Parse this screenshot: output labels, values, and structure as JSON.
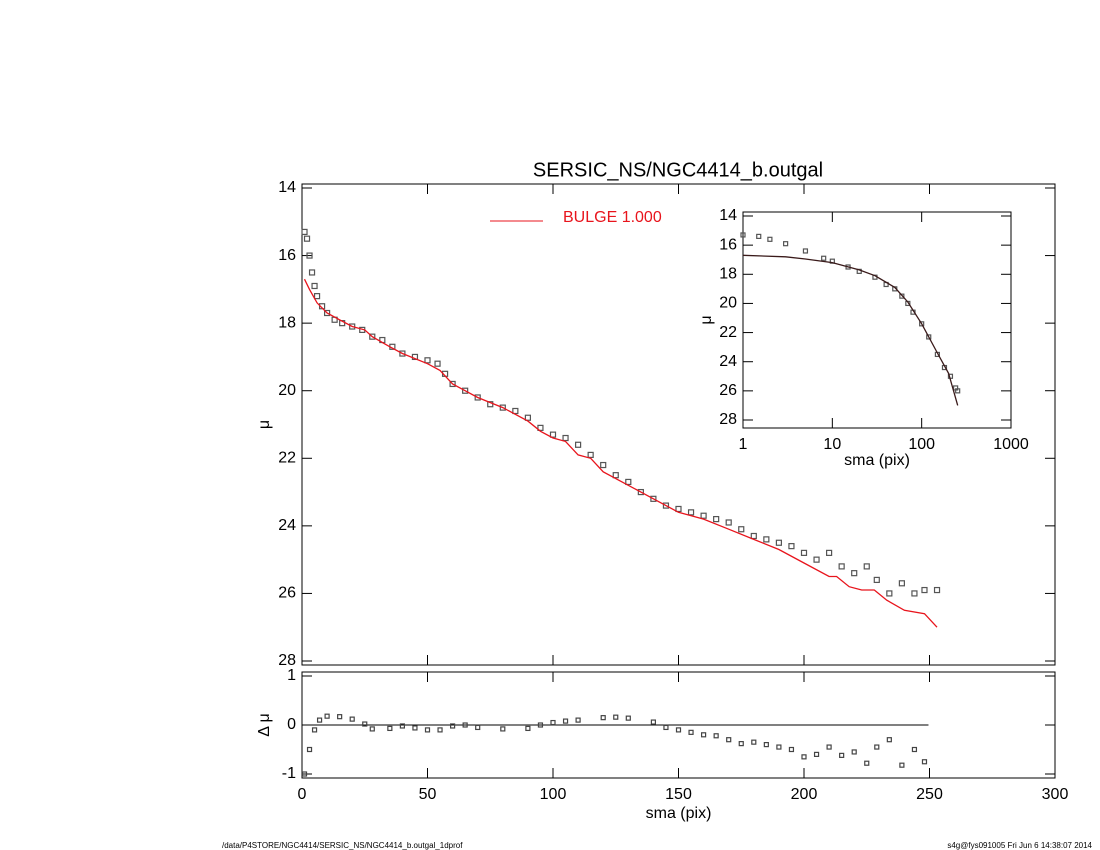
{
  "chart_data": [
    {
      "type": "line",
      "title": "SERSIC_NS/NGC4414_b.outgal",
      "y_label": "μ",
      "xlim": [
        0,
        300
      ],
      "ylim": [
        28,
        14
      ],
      "yticks": [
        14,
        16,
        18,
        20,
        22,
        24,
        26,
        28
      ],
      "legend": "top",
      "series": [
        {
          "color": "#555555",
          "marker": "square",
          "x": [
            1,
            2,
            3,
            4,
            5,
            6,
            8,
            10,
            13,
            16,
            20,
            24,
            28,
            32,
            36,
            40,
            45,
            50,
            54,
            57,
            60,
            65,
            70,
            75,
            80,
            85,
            90,
            95,
            100,
            105,
            110,
            115,
            120,
            125,
            130,
            135,
            140,
            145,
            150,
            155,
            160,
            165,
            170,
            175,
            180,
            185,
            190,
            195,
            200,
            205,
            210,
            215,
            220,
            225,
            229,
            234,
            239,
            244,
            248,
            253
          ],
          "values": [
            15.3,
            15.5,
            16.0,
            16.5,
            16.9,
            17.2,
            17.5,
            17.7,
            17.9,
            18.0,
            18.1,
            18.2,
            18.4,
            18.5,
            18.7,
            18.9,
            19.0,
            19.1,
            19.2,
            19.5,
            19.8,
            20.0,
            20.2,
            20.4,
            20.5,
            20.6,
            20.8,
            21.1,
            21.3,
            21.4,
            21.6,
            21.9,
            22.2,
            22.5,
            22.7,
            23.0,
            23.2,
            23.4,
            23.5,
            23.6,
            23.7,
            23.8,
            23.9,
            24.1,
            24.3,
            24.4,
            24.5,
            24.6,
            24.8,
            25.0,
            24.8,
            25.2,
            25.4,
            25.2,
            25.6,
            26.0,
            25.7,
            26.0,
            25.9,
            25.9
          ]
        },
        {
          "name": "BULGE  1.000",
          "color": "#e8141c",
          "marker": "none",
          "x": [
            1,
            3,
            6,
            10,
            15,
            20,
            25,
            28,
            35,
            40,
            50,
            55,
            60,
            65,
            70,
            80,
            90,
            95,
            100,
            105,
            110,
            115,
            120,
            130,
            140,
            150,
            160,
            170,
            180,
            190,
            200,
            210,
            213,
            218,
            223,
            228,
            233,
            240,
            248,
            253
          ],
          "values": [
            16.7,
            17.0,
            17.4,
            17.7,
            17.9,
            18.1,
            18.2,
            18.4,
            18.7,
            18.9,
            19.2,
            19.4,
            19.8,
            20.0,
            20.2,
            20.5,
            20.9,
            21.2,
            21.4,
            21.5,
            21.9,
            22.0,
            22.4,
            22.8,
            23.2,
            23.6,
            23.8,
            24.1,
            24.4,
            24.7,
            25.1,
            25.5,
            25.5,
            25.8,
            25.9,
            25.9,
            26.2,
            26.5,
            26.6,
            27.0
          ]
        }
      ]
    },
    {
      "type": "scatter",
      "y_label": "Δ μ",
      "x_label": "sma (pix)",
      "xlim": [
        0,
        300
      ],
      "xticks": [
        0,
        50,
        100,
        150,
        200,
        250,
        300
      ],
      "ylim": [
        -1,
        1
      ],
      "yticks": [
        -1,
        0,
        1
      ],
      "reference_line": 0,
      "series": [
        {
          "color": "#444444",
          "marker": "square",
          "x": [
            1,
            3,
            5,
            7,
            10,
            15,
            20,
            25,
            28,
            35,
            40,
            45,
            50,
            55,
            60,
            65,
            70,
            80,
            90,
            95,
            100,
            105,
            110,
            120,
            125,
            130,
            140,
            145,
            150,
            155,
            160,
            165,
            170,
            175,
            180,
            185,
            190,
            195,
            200,
            205,
            210,
            215,
            220,
            225,
            229,
            234,
            239,
            244,
            248
          ],
          "values": [
            -1,
            -0.5,
            -0.1,
            0.1,
            0.18,
            0.17,
            0.12,
            0.02,
            -0.08,
            -0.07,
            -0.02,
            -0.06,
            -0.1,
            -0.1,
            -0.02,
            0,
            -0.05,
            -0.08,
            -0.07,
            0,
            0.05,
            0.08,
            0.1,
            0.15,
            0.16,
            0.14,
            0.06,
            -0.05,
            -0.1,
            -0.15,
            -0.2,
            -0.22,
            -0.3,
            -0.38,
            -0.35,
            -0.4,
            -0.45,
            -0.5,
            -0.65,
            -0.6,
            -0.45,
            -0.62,
            -0.55,
            -0.78,
            -0.45,
            -0.3,
            -0.82,
            -0.5,
            -0.75
          ]
        }
      ]
    },
    {
      "type": "line",
      "y_label": "μ",
      "x_label": "sma (pix)",
      "xlog": true,
      "xlim": [
        1,
        1000
      ],
      "xticks": [
        1,
        10,
        100,
        1000
      ],
      "ylim": [
        28,
        14
      ],
      "yticks": [
        14,
        16,
        18,
        20,
        22,
        24,
        26,
        28
      ],
      "series": [
        {
          "color": "#555555",
          "marker": "square",
          "x": [
            1,
            1.5,
            2,
            3,
            5,
            8,
            10,
            15,
            20,
            30,
            40,
            50,
            60,
            70,
            80,
            100,
            120,
            150,
            180,
            210,
            240,
            253
          ],
          "values": [
            15.3,
            15.4,
            15.6,
            15.9,
            16.4,
            16.9,
            17.1,
            17.5,
            17.8,
            18.2,
            18.7,
            19.0,
            19.5,
            20.0,
            20.6,
            21.4,
            22.3,
            23.5,
            24.4,
            25.0,
            25.8,
            26.0
          ]
        },
        {
          "color": "#3a1a1a",
          "marker": "none",
          "x": [
            1,
            3,
            5,
            10,
            20,
            30,
            50,
            70,
            100,
            150,
            200,
            253
          ],
          "values": [
            16.7,
            16.8,
            16.95,
            17.2,
            17.7,
            18.1,
            18.9,
            19.9,
            21.4,
            23.4,
            24.8,
            27.0
          ]
        }
      ]
    }
  ],
  "footer": {
    "left": "/data/P4STORE/NGC4414/SERSIC_NS/NGC4414_b.outgal_1dprof",
    "right": "s4g@fys091005  Fri Jun  6 14:38:07 2014"
  }
}
